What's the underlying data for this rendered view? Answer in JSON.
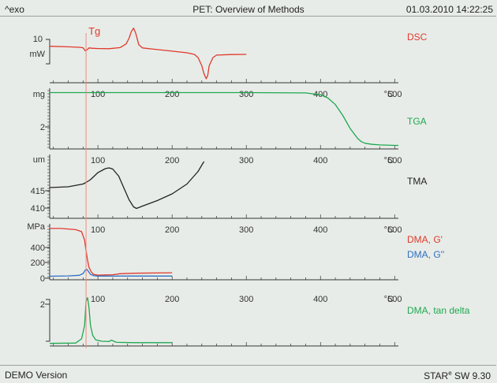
{
  "header": {
    "left": "^exo",
    "title": "PET: Overview of Methods",
    "datetime": "01.03.2010 14:22:25"
  },
  "footer": {
    "left": "DEMO Version",
    "brand": "STAR",
    "brand_mark": "e",
    "version": " SW 9.30"
  },
  "colors": {
    "dsc": "#e0392c",
    "tga": "#1ea850",
    "tma": "#222222",
    "dma_g1": "#e0392c",
    "dma_g2": "#2f6fc4",
    "tan_delta": "#1ea850",
    "tg_line": "#f08a80",
    "axis": "#333333"
  },
  "chart_data": {
    "type": "line",
    "x_unit": "°C",
    "x_ticks": [
      100,
      200,
      300,
      400,
      500
    ],
    "xlim": [
      35,
      505
    ],
    "annotation": {
      "label": "Tg",
      "x": 84
    },
    "panels": [
      {
        "id": "dsc",
        "y_unit": "mW",
        "y_scale_bar": "10",
        "show_x_ticks": false,
        "series": [
          {
            "name": "DSC",
            "color_key": "dsc",
            "x": [
              35,
              60,
              75,
              80,
              83,
              86,
              88,
              92,
              100,
              115,
              130,
              138,
              142,
              145,
              148,
              151,
              155,
              160,
              175,
              200,
              220,
              230,
              235,
              240,
              243,
              246,
              248,
              250,
              255,
              260,
              280,
              300
            ],
            "y": [
              0.0,
              -0.3,
              -0.6,
              -0.9,
              -2.8,
              -1.9,
              -1.0,
              -1.2,
              -1.4,
              -1.5,
              -0.8,
              1.5,
              5.0,
              9.0,
              11.2,
              8.0,
              1.0,
              -1.0,
              -1.8,
              -3.0,
              -4.0,
              -5.0,
              -7.0,
              -12.0,
              -17.0,
              -20.0,
              -18.0,
              -12.0,
              -7.0,
              -5.4,
              -5.1,
              -5.0
            ]
          }
        ],
        "yrange": [
          -22,
          13
        ]
      },
      {
        "id": "tga",
        "y_unit": "mg",
        "y_tick_labels": [
          "2"
        ],
        "series": [
          {
            "name": "TGA",
            "color_key": "tga",
            "x": [
              35,
              100,
              200,
              300,
              380,
              400,
              410,
              420,
              430,
              440,
              450,
              455,
              460,
              470,
              480,
              500,
              505
            ],
            "y": [
              10.2,
              10.2,
              10.2,
              10.2,
              10.15,
              9.8,
              9.2,
              8.0,
              6.0,
              3.6,
              1.8,
              1.2,
              0.9,
              0.7,
              0.6,
              0.5,
              0.5
            ]
          }
        ],
        "yrange": [
          0,
          11
        ]
      },
      {
        "id": "tma",
        "y_unit": "um",
        "y_tick_labels": [
          "415",
          "410"
        ],
        "series": [
          {
            "name": "TMA",
            "color_key": "tma",
            "x": [
              35,
              60,
              80,
              84,
              90,
              100,
              110,
              115,
              120,
              128,
              135,
              142,
              148,
              152,
              160,
              180,
              200,
              220,
              235,
              240,
              243
            ],
            "y": [
              414.6,
              414.8,
              415.5,
              415.9,
              416.6,
              418.4,
              419.4,
              419.6,
              419.3,
              417.5,
              414.5,
              411.5,
              409.7,
              409.3,
              409.9,
              411.3,
              413.0,
              415.5,
              418.7,
              420.3,
              421.2
            ]
          }
        ],
        "yrange": [
          407,
          423
        ]
      },
      {
        "id": "dma",
        "y_unit": "MPa",
        "y_tick_labels": [
          "400",
          "200",
          "0"
        ],
        "series": [
          {
            "name": "DMA, G'",
            "color_key": "dma_g1",
            "x": [
              35,
              50,
              70,
              78,
              82,
              84,
              86,
              88,
              91,
              94,
              100,
              120,
              130,
              150,
              200
            ],
            "y": [
              620,
              620,
              605,
              580,
              470,
              330,
              210,
              120,
              60,
              30,
              20,
              25,
              38,
              44,
              50
            ]
          },
          {
            "name": "DMA, G''",
            "color_key": "dma_g2",
            "x": [
              35,
              60,
              75,
              80,
              83,
              85,
              87,
              90,
              95,
              100,
              200
            ],
            "y": [
              5,
              10,
              18,
              40,
              85,
              95,
              70,
              30,
              12,
              8,
              8
            ]
          }
        ],
        "yrange": [
          -30,
          680
        ]
      },
      {
        "id": "tandelta",
        "y_tick_labels": [
          "2"
        ],
        "series": [
          {
            "name": "DMA, tan delta",
            "color_key": "tan_delta",
            "x": [
              35,
              70,
              78,
              82,
              84,
              86,
              88,
              90,
              93,
              97,
              105,
              115,
              118,
              125,
              150,
              200
            ],
            "y": [
              0.0,
              0.02,
              0.25,
              1.0,
              2.35,
              2.55,
              2.0,
              1.0,
              0.45,
              0.2,
              0.12,
              0.1,
              0.18,
              0.06,
              0.04,
              0.04
            ]
          }
        ],
        "yrange": [
          -0.1,
          2.8
        ]
      }
    ]
  }
}
